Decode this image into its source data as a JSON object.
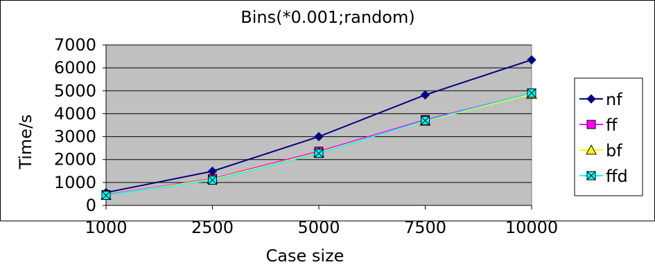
{
  "chart_data": {
    "type": "line",
    "title": "Bins(*0.001;random)",
    "xlabel": "Case size",
    "ylabel": "Time/s",
    "categories": [
      "1000",
      "2500",
      "5000",
      "7500",
      "10000"
    ],
    "ylim": [
      0,
      7000
    ],
    "yticks": [
      "0",
      "1000",
      "2000",
      "3000",
      "4000",
      "5000",
      "6000",
      "7000"
    ],
    "grid": true,
    "plot_background": "#c0c0c0",
    "legend_position": "right",
    "series": [
      {
        "name": "nf",
        "values": [
          560,
          1490,
          3000,
          4820,
          6350
        ],
        "color": "#000080",
        "marker": "diamond"
      },
      {
        "name": "ff",
        "values": [
          470,
          1170,
          2360,
          3740,
          4900
        ],
        "color": "#ff00ff",
        "marker": "square"
      },
      {
        "name": "bf",
        "values": [
          450,
          1140,
          2300,
          3680,
          4850
        ],
        "color": "#ffff00",
        "marker": "triangle"
      },
      {
        "name": "ffd",
        "values": [
          440,
          1100,
          2270,
          3700,
          4900
        ],
        "color": "#00ffff",
        "marker": "bowtie"
      }
    ]
  }
}
